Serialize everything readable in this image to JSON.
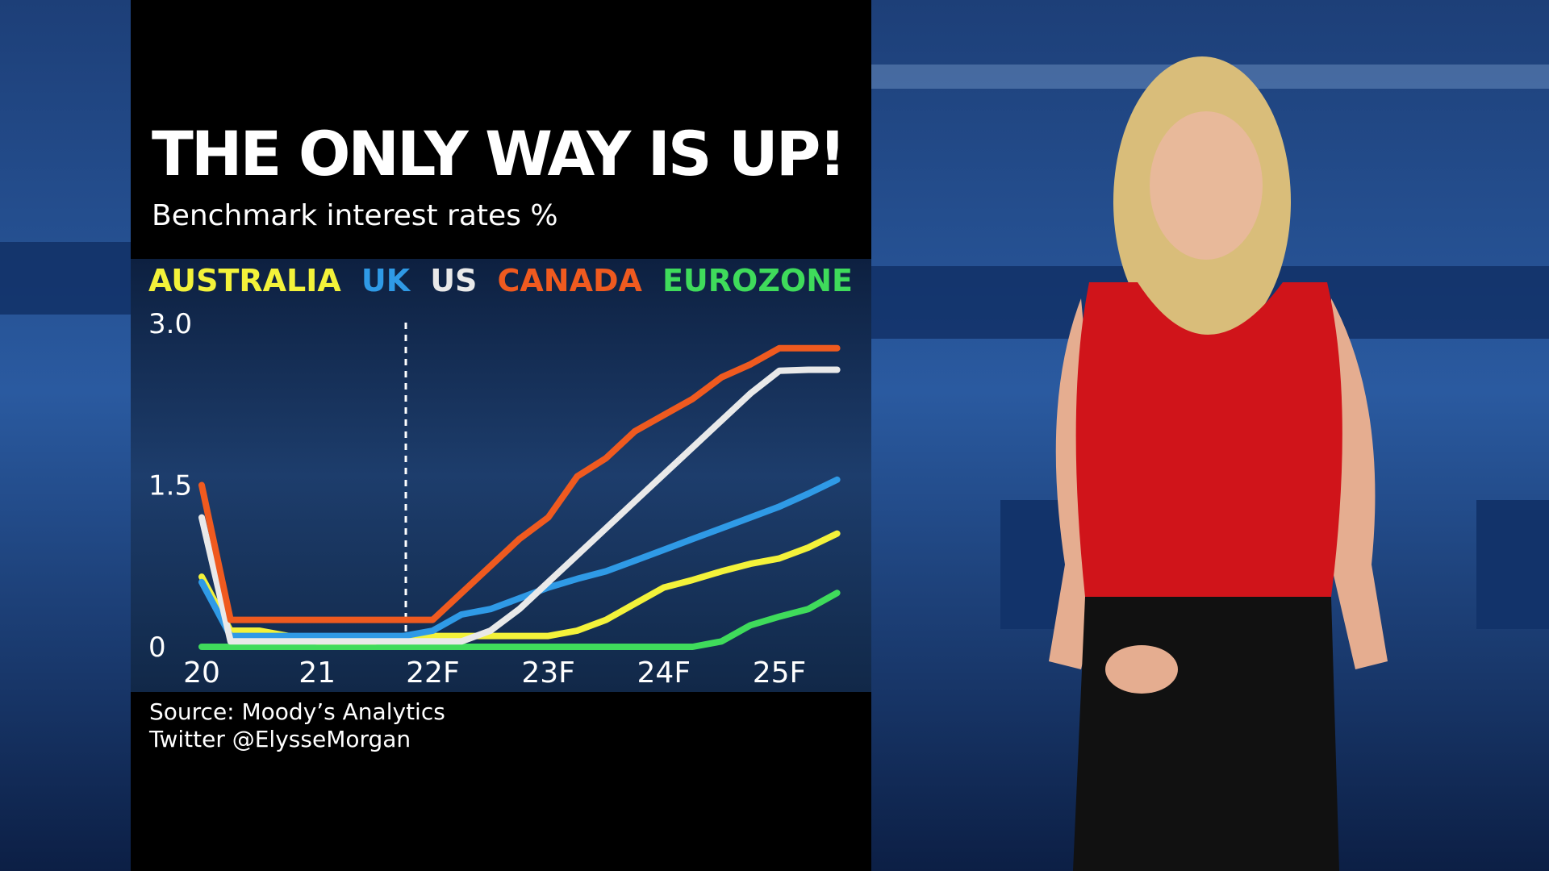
{
  "chart_data": {
    "type": "line",
    "title": "THE ONLY WAY IS UP!",
    "subtitle": "Benchmark interest rates %",
    "categories": [
      "20",
      null,
      null,
      null,
      "21",
      null,
      null,
      null,
      "22F",
      null,
      null,
      null,
      "23F",
      null,
      null,
      null,
      "24F",
      null,
      null,
      null,
      "25F",
      null,
      null
    ],
    "series": [
      {
        "name": "AUSTRALIA",
        "color": "#f3f23a",
        "values": [
          0.65,
          0.15,
          0.15,
          0.1,
          0.05,
          0.05,
          0.05,
          0.1,
          0.1,
          0.1,
          0.1,
          0.1,
          0.1,
          0.15,
          0.25,
          0.4,
          0.55,
          0.62,
          0.7,
          0.77,
          0.82,
          0.92,
          1.05
        ]
      },
      {
        "name": "UK",
        "color": "#2f9ae6",
        "values": [
          0.6,
          0.1,
          0.1,
          0.1,
          0.1,
          0.1,
          0.1,
          0.1,
          0.15,
          0.3,
          0.35,
          0.45,
          0.55,
          0.63,
          0.7,
          0.8,
          0.9,
          1.0,
          1.1,
          1.2,
          1.3,
          1.42,
          1.55
        ]
      },
      {
        "name": "US",
        "color": "#e9e9e9",
        "values": [
          1.2,
          0.05,
          0.05,
          0.05,
          0.05,
          0.05,
          0.05,
          0.05,
          0.05,
          0.05,
          0.15,
          0.35,
          0.6,
          0.85,
          1.1,
          1.35,
          1.6,
          1.85,
          2.1,
          2.35,
          2.56,
          2.57,
          2.57
        ]
      },
      {
        "name": "CANADA",
        "color": "#ef5a1f",
        "values": [
          1.5,
          0.25,
          0.25,
          0.25,
          0.25,
          0.25,
          0.25,
          0.25,
          0.25,
          0.5,
          0.75,
          1.0,
          1.2,
          1.58,
          1.75,
          2.0,
          2.15,
          2.3,
          2.5,
          2.62,
          2.77,
          2.77,
          2.77
        ]
      },
      {
        "name": "EUROZONE",
        "color": "#3fdb5b",
        "values": [
          0,
          0,
          0,
          0,
          0,
          0,
          0,
          0,
          0,
          0,
          0,
          0,
          0,
          0,
          0,
          0,
          0,
          0,
          0.05,
          0.2,
          0.28,
          0.35,
          0.5
        ]
      }
    ],
    "ylim": [
      0,
      3
    ],
    "yticks": [
      0,
      1.5,
      {
        "value": 3,
        "label": "3.0"
      }
    ],
    "source": "Source: Moody’s Analytics",
    "credit": "Twitter @ElysseMorgan"
  }
}
